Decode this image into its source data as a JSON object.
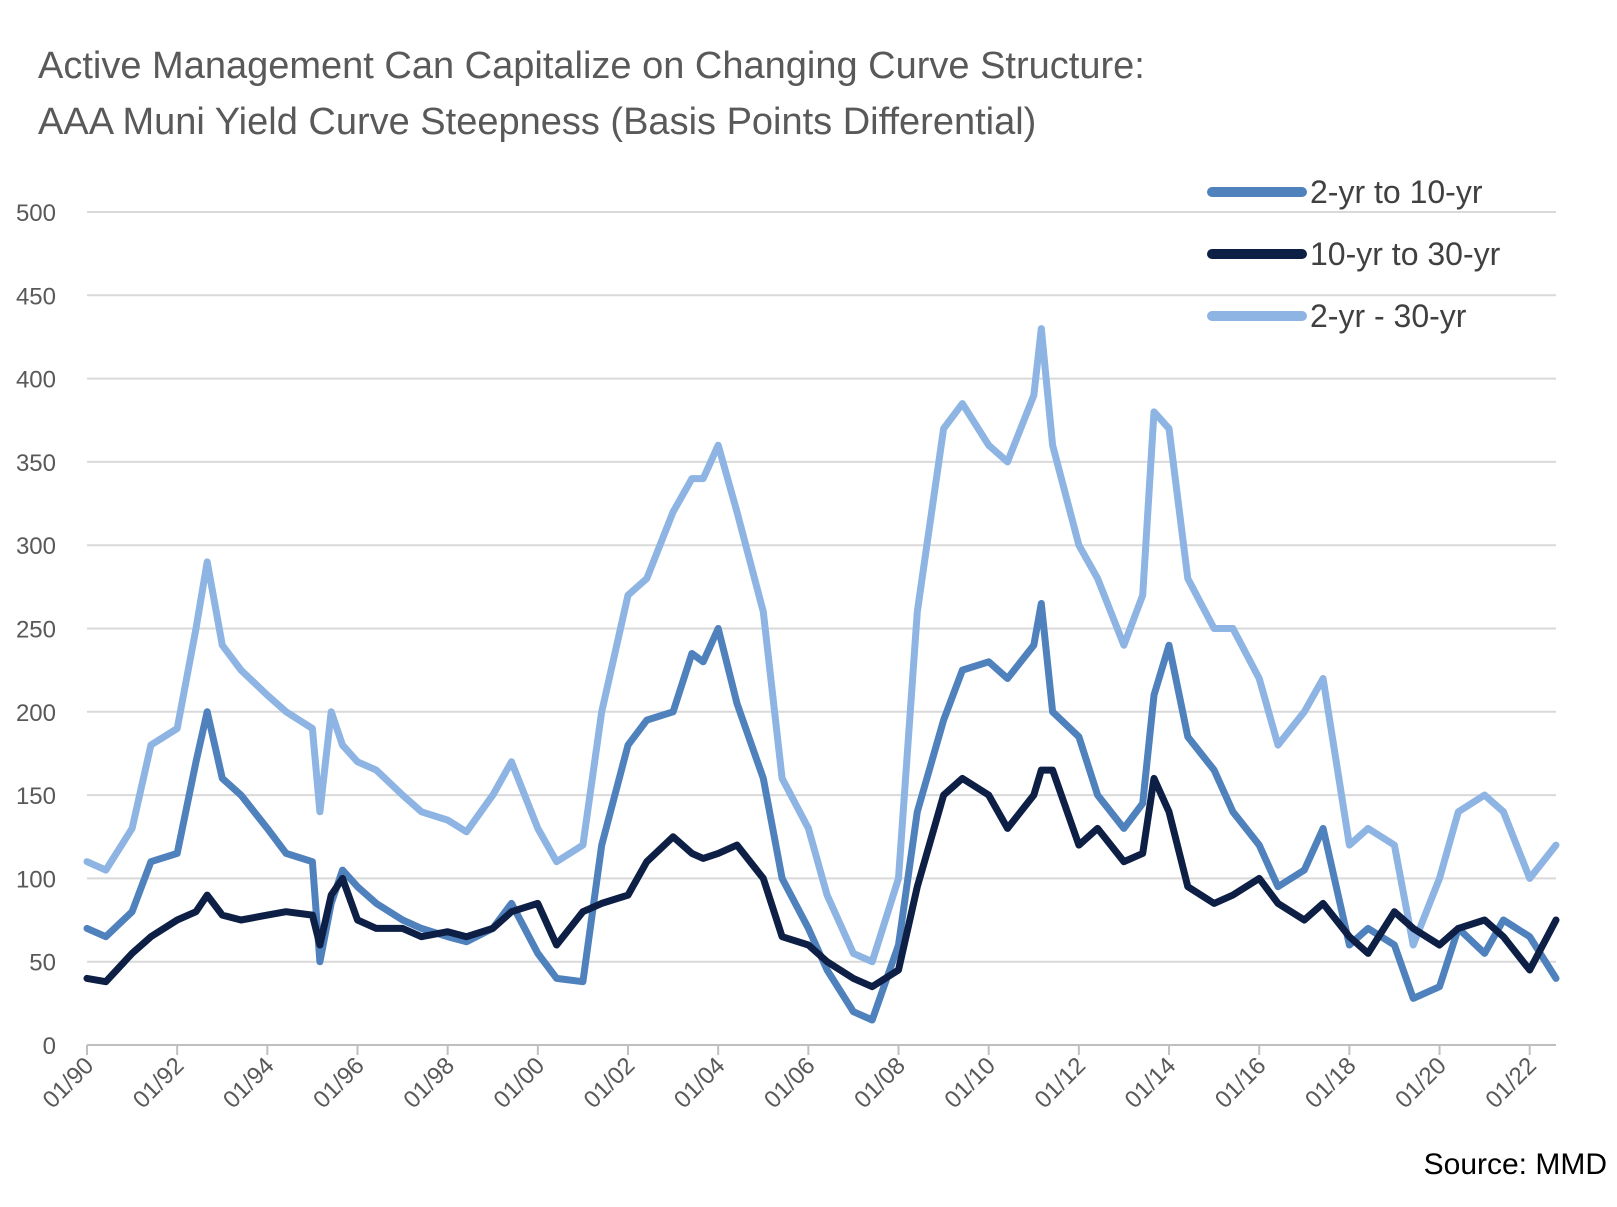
{
  "title_line1": "Active Management Can Capitalize on Changing Curve Structure:",
  "title_line2": "AAA Muni Yield Curve Steepness (Basis Points Differential)",
  "source": "Source: MMD",
  "chart_data": {
    "type": "line",
    "title": "Active Management Can Capitalize on Changing Curve Structure: AAA Muni Yield Curve Steepness (Basis Points Differential)",
    "xlabel": "",
    "ylabel": "",
    "ylim": [
      0,
      500
    ],
    "yticks": [
      0,
      50,
      100,
      150,
      200,
      250,
      300,
      350,
      400,
      450,
      500
    ],
    "xlim": [
      "1990-01",
      "2022-08"
    ],
    "xticks": [
      "01/90",
      "01/92",
      "01/94",
      "01/96",
      "01/98",
      "01/00",
      "01/02",
      "01/04",
      "01/06",
      "01/08",
      "01/10",
      "01/12",
      "01/14",
      "01/16",
      "01/18",
      "01/20",
      "01/22"
    ],
    "grid": true,
    "legend": "top-right",
    "series": [
      {
        "name": "2-yr to 10-yr",
        "color": "#4f81bd",
        "x": [
          "1990-01",
          "1990-06",
          "1991-01",
          "1991-06",
          "1992-01",
          "1992-06",
          "1992-09",
          "1993-01",
          "1993-06",
          "1994-01",
          "1994-06",
          "1995-01",
          "1995-03",
          "1995-06",
          "1995-09",
          "1996-01",
          "1996-06",
          "1997-01",
          "1997-06",
          "1998-01",
          "1998-06",
          "1999-01",
          "1999-06",
          "2000-01",
          "2000-06",
          "2001-01",
          "2001-06",
          "2002-01",
          "2002-06",
          "2003-01",
          "2003-06",
          "2003-09",
          "2004-01",
          "2004-06",
          "2005-01",
          "2005-06",
          "2006-01",
          "2006-06",
          "2007-01",
          "2007-06",
          "2008-01",
          "2008-06",
          "2009-01",
          "2009-06",
          "2010-01",
          "2010-06",
          "2011-01",
          "2011-03",
          "2011-06",
          "2012-01",
          "2012-06",
          "2013-01",
          "2013-06",
          "2013-09",
          "2014-01",
          "2014-06",
          "2015-01",
          "2015-06",
          "2016-01",
          "2016-06",
          "2017-01",
          "2017-06",
          "2018-01",
          "2018-06",
          "2019-01",
          "2019-06",
          "2020-01",
          "2020-06",
          "2021-01",
          "2021-06",
          "2022-01",
          "2022-08"
        ],
        "values": [
          70,
          65,
          80,
          110,
          115,
          170,
          200,
          160,
          150,
          130,
          115,
          110,
          50,
          85,
          105,
          95,
          85,
          75,
          70,
          65,
          62,
          70,
          85,
          55,
          40,
          38,
          120,
          180,
          195,
          200,
          235,
          230,
          250,
          205,
          160,
          100,
          70,
          45,
          20,
          15,
          60,
          140,
          195,
          225,
          230,
          220,
          240,
          265,
          200,
          185,
          150,
          130,
          145,
          210,
          240,
          185,
          165,
          140,
          120,
          95,
          105,
          130,
          60,
          70,
          60,
          28,
          35,
          70,
          55,
          75,
          65,
          40
        ]
      },
      {
        "name": "10-yr to 30-yr",
        "color": "#0d1f45",
        "x": [
          "1990-01",
          "1990-06",
          "1991-01",
          "1991-06",
          "1992-01",
          "1992-06",
          "1992-09",
          "1993-01",
          "1993-06",
          "1994-01",
          "1994-06",
          "1995-01",
          "1995-03",
          "1995-06",
          "1995-09",
          "1996-01",
          "1996-06",
          "1997-01",
          "1997-06",
          "1998-01",
          "1998-06",
          "1999-01",
          "1999-06",
          "2000-01",
          "2000-06",
          "2001-01",
          "2001-06",
          "2002-01",
          "2002-06",
          "2003-01",
          "2003-06",
          "2003-09",
          "2004-01",
          "2004-06",
          "2005-01",
          "2005-06",
          "2006-01",
          "2006-06",
          "2007-01",
          "2007-06",
          "2008-01",
          "2008-06",
          "2009-01",
          "2009-06",
          "2010-01",
          "2010-06",
          "2011-01",
          "2011-03",
          "2011-06",
          "2012-01",
          "2012-06",
          "2013-01",
          "2013-06",
          "2013-09",
          "2014-01",
          "2014-06",
          "2015-01",
          "2015-06",
          "2016-01",
          "2016-06",
          "2017-01",
          "2017-06",
          "2018-01",
          "2018-06",
          "2019-01",
          "2019-06",
          "2020-01",
          "2020-06",
          "2021-01",
          "2021-06",
          "2022-01",
          "2022-08"
        ],
        "values": [
          40,
          38,
          55,
          65,
          75,
          80,
          90,
          78,
          75,
          78,
          80,
          78,
          60,
          90,
          100,
          75,
          70,
          70,
          65,
          68,
          65,
          70,
          80,
          85,
          60,
          80,
          85,
          90,
          110,
          125,
          115,
          112,
          115,
          120,
          100,
          65,
          60,
          50,
          40,
          35,
          45,
          95,
          150,
          160,
          150,
          130,
          150,
          165,
          165,
          120,
          130,
          110,
          115,
          160,
          140,
          95,
          85,
          90,
          100,
          85,
          75,
          85,
          65,
          55,
          80,
          70,
          60,
          70,
          75,
          65,
          45,
          75
        ]
      },
      {
        "name": "2-yr - 30-yr",
        "color": "#8db4e2",
        "x": [
          "1990-01",
          "1990-06",
          "1991-01",
          "1991-06",
          "1992-01",
          "1992-06",
          "1992-09",
          "1993-01",
          "1993-06",
          "1994-01",
          "1994-06",
          "1995-01",
          "1995-03",
          "1995-06",
          "1995-09",
          "1996-01",
          "1996-06",
          "1997-01",
          "1997-06",
          "1998-01",
          "1998-06",
          "1999-01",
          "1999-06",
          "2000-01",
          "2000-06",
          "2001-01",
          "2001-06",
          "2002-01",
          "2002-06",
          "2003-01",
          "2003-06",
          "2003-09",
          "2004-01",
          "2004-06",
          "2005-01",
          "2005-06",
          "2006-01",
          "2006-06",
          "2007-01",
          "2007-06",
          "2008-01",
          "2008-06",
          "2009-01",
          "2009-06",
          "2010-01",
          "2010-06",
          "2011-01",
          "2011-03",
          "2011-06",
          "2012-01",
          "2012-06",
          "2013-01",
          "2013-06",
          "2013-09",
          "2014-01",
          "2014-06",
          "2015-01",
          "2015-06",
          "2016-01",
          "2016-06",
          "2017-01",
          "2017-06",
          "2018-01",
          "2018-06",
          "2019-01",
          "2019-06",
          "2020-01",
          "2020-06",
          "2021-01",
          "2021-06",
          "2022-01",
          "2022-08"
        ],
        "values": [
          110,
          105,
          130,
          180,
          190,
          250,
          290,
          240,
          225,
          210,
          200,
          190,
          140,
          200,
          180,
          170,
          165,
          150,
          140,
          135,
          128,
          150,
          170,
          130,
          110,
          120,
          200,
          270,
          280,
          320,
          340,
          340,
          360,
          320,
          260,
          160,
          130,
          90,
          55,
          50,
          100,
          260,
          370,
          385,
          360,
          350,
          390,
          430,
          360,
          300,
          280,
          240,
          270,
          380,
          370,
          280,
          250,
          250,
          220,
          180,
          200,
          220,
          120,
          130,
          120,
          60,
          100,
          140,
          150,
          140,
          100,
          120
        ]
      }
    ]
  }
}
